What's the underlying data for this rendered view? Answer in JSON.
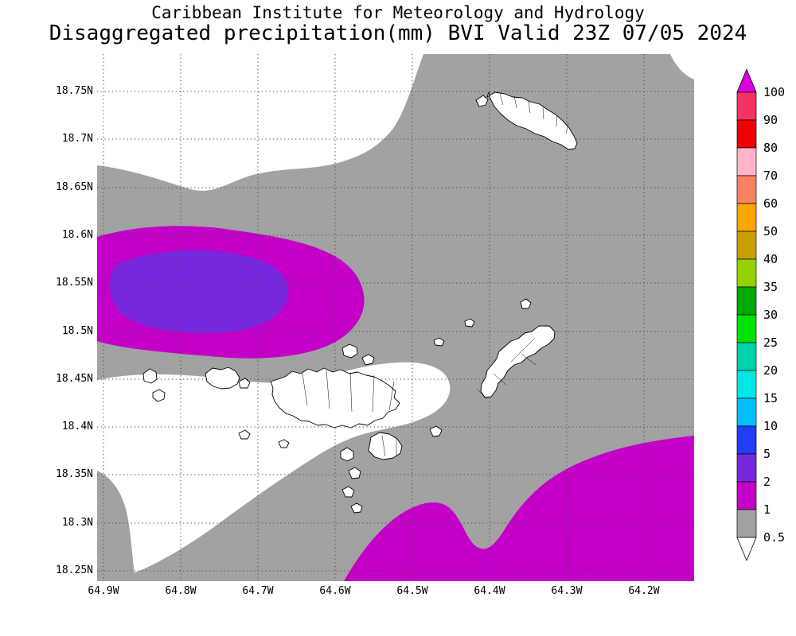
{
  "header": {
    "title_line1": "Caribbean Institute for Meteorology and Hydrology",
    "title_line2": "Disaggregated precipitation(mm) BVI Valid 23Z 07/05 2024"
  },
  "map": {
    "y_axis_labels": [
      "18.75N",
      "18.7N",
      "18.65N",
      "18.6N",
      "18.55N",
      "18.5N",
      "18.45N",
      "18.4N",
      "18.35N",
      "18.3N",
      "18.25N"
    ],
    "x_axis_labels": [
      "64.9W",
      "64.8W",
      "64.7W",
      "64.6W",
      "64.5W",
      "64.4W",
      "64.3W",
      "64.2W"
    ],
    "palette": {
      "below_0_5": "#FFFFFF",
      "level_0_5_to_1": "#A2A2A2",
      "level_1_to_2": "#C400C8",
      "level_2_to_5": "#7828DC",
      "coastline": "#000000",
      "gridline": "#4B4B4B"
    }
  },
  "colorbar": {
    "tick_labels": [
      "100",
      "90",
      "80",
      "70",
      "60",
      "50",
      "40",
      "35",
      "30",
      "25",
      "20",
      "15",
      "10",
      "5",
      "2",
      "1",
      "0.5"
    ],
    "box_colors_top_to_bottom": [
      "#F53264",
      "#F00000",
      "#FFB4C8",
      "#FA8264",
      "#FFA500",
      "#C8A000",
      "#96D200",
      "#00AA00",
      "#00E100",
      "#00D2AA",
      "#00E6E6",
      "#00BEFF",
      "#233CF5",
      "#7828DC",
      "#C400C8",
      "#A2A2A2"
    ],
    "over_arrow_color": "#DC00DC",
    "under_arrow_color": "#FFFFFF"
  },
  "chart_data": {
    "type": "filled-contour-precipitation-map",
    "units": "mm",
    "region": "BVI",
    "valid": "23Z 07/05 2024",
    "contour_levels": [
      0.5,
      1,
      2,
      5,
      10,
      15,
      20,
      25,
      30,
      35,
      40,
      50,
      60,
      70,
      80,
      90,
      100
    ],
    "lat_ticks": [
      18.75,
      18.7,
      18.65,
      18.6,
      18.55,
      18.5,
      18.45,
      18.4,
      18.35,
      18.3,
      18.25
    ],
    "lon_ticks": [
      64.9,
      64.8,
      64.7,
      64.6,
      64.5,
      64.4,
      64.3,
      64.2
    ],
    "shown_maxima": "1-5 mm area centered near 18.55N 64.8W and 1-2 mm area in the southeast; most of domain 0.5-1 mm (gray) or below 0.5 mm (white)"
  }
}
